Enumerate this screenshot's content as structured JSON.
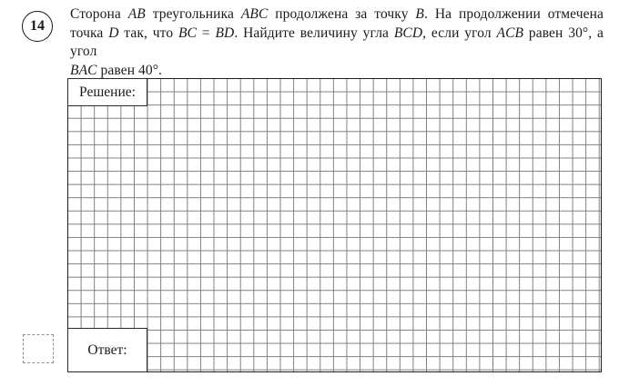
{
  "problem": {
    "number": "14",
    "lines": [
      {
        "segments": [
          "Сторона ",
          "AB",
          " треугольника ",
          "ABC",
          " продолжена за точку ",
          "B",
          ". На продолжении отмечена"
        ]
      },
      {
        "segments": [
          "точка ",
          "D",
          " так, что ",
          "BC",
          " = ",
          "BD",
          ". Найдите величину угла ",
          "BCD",
          ", если угол ",
          "ACB",
          " равен 30°, а угол"
        ]
      },
      {
        "segments": [
          "BAC",
          " равен 40°."
        ]
      }
    ]
  },
  "labels": {
    "solution": "Решение:",
    "answer": "Ответ:"
  },
  "grid": {
    "columns": 40,
    "rows": 22
  },
  "colors": {
    "grid_line": "#7e7e7e",
    "grid_border": "#1e1e1e",
    "text": "#1a1a1a",
    "background": "#ffffff"
  }
}
